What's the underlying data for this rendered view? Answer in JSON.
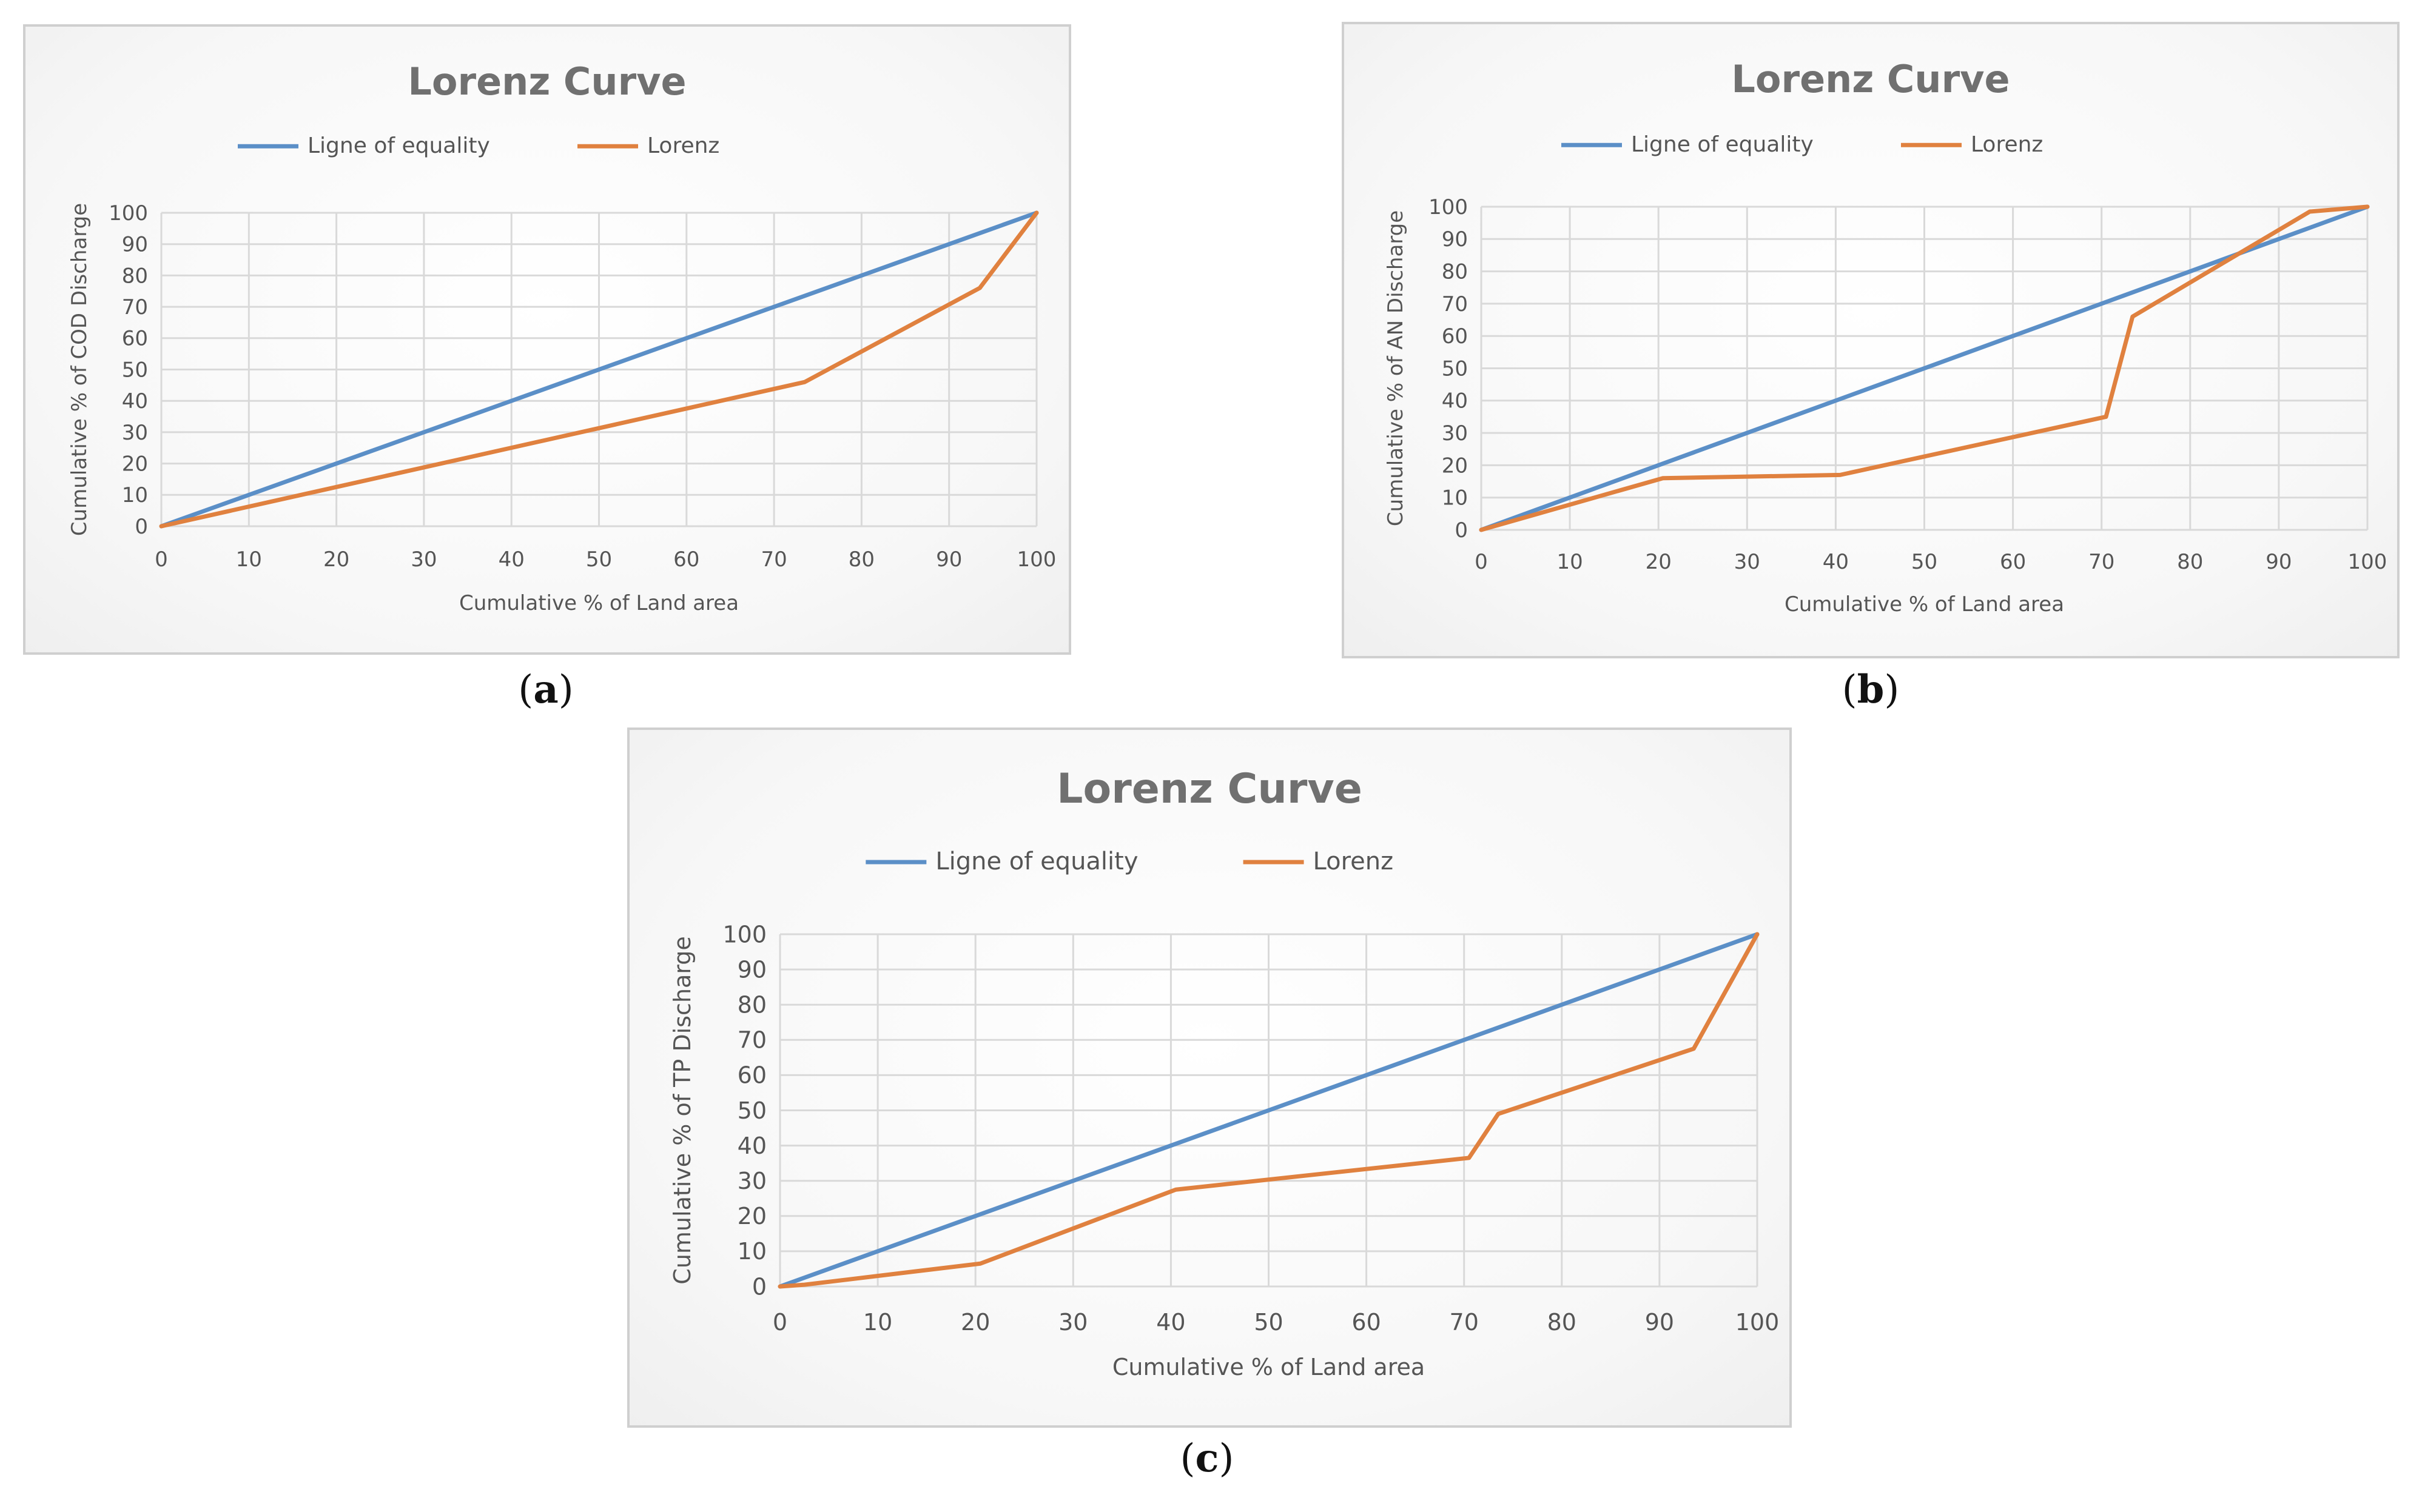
{
  "colors": {
    "equality": "#5b8fc7",
    "lorenz": "#e0813f",
    "grid": "#d9d9d9",
    "title": "#707070",
    "text": "#555555"
  },
  "chart_data": [
    {
      "id": "a",
      "type": "line",
      "title": "Lorenz Curve",
      "xlabel": "Cumulative % of Land area",
      "ylabel": "Cumulative % of COD Discharge",
      "xlim": [
        0,
        100
      ],
      "ylim": [
        0,
        100
      ],
      "xticks": [
        "0",
        "10",
        "20",
        "30",
        "40",
        "50",
        "60",
        "70",
        "80",
        "90",
        "100"
      ],
      "yticks": [
        "0",
        "10",
        "20",
        "30",
        "40",
        "50",
        "60",
        "70",
        "80",
        "90",
        "100"
      ],
      "grid": true,
      "legend_position": "top-center",
      "series": [
        {
          "name": "Ligne of equality",
          "x": [
            0,
            100
          ],
          "y": [
            0,
            100
          ]
        },
        {
          "name": "Lorenz",
          "x": [
            0,
            73.5,
            93.5,
            100
          ],
          "y": [
            0,
            46,
            76,
            100
          ]
        }
      ]
    },
    {
      "id": "b",
      "type": "line",
      "title": "Lorenz Curve",
      "xlabel": "Cumulative % of Land area",
      "ylabel": "Cumulative % of AN Discharge",
      "xlim": [
        0,
        100
      ],
      "ylim": [
        0,
        100
      ],
      "xticks": [
        "0",
        "10",
        "20",
        "30",
        "40",
        "50",
        "60",
        "70",
        "80",
        "90",
        "100"
      ],
      "yticks": [
        "0",
        "10",
        "20",
        "30",
        "40",
        "50",
        "60",
        "70",
        "80",
        "90",
        "100"
      ],
      "grid": true,
      "legend_position": "top-center",
      "series": [
        {
          "name": "Ligne of equality",
          "x": [
            0,
            100
          ],
          "y": [
            0,
            100
          ]
        },
        {
          "name": "Lorenz",
          "x": [
            0,
            20.5,
            40.5,
            70.5,
            73.5,
            93.5,
            100
          ],
          "y": [
            0,
            16,
            17,
            35,
            66,
            98.5,
            100
          ]
        }
      ]
    },
    {
      "id": "c",
      "type": "line",
      "title": "Lorenz Curve",
      "xlabel": "Cumulative % of Land area",
      "ylabel": "Cumulative % of TP Discharge",
      "xlim": [
        0,
        100
      ],
      "ylim": [
        0,
        100
      ],
      "xticks": [
        "0",
        "10",
        "20",
        "30",
        "40",
        "50",
        "60",
        "70",
        "80",
        "90",
        "100"
      ],
      "yticks": [
        "0",
        "10",
        "20",
        "30",
        "40",
        "50",
        "60",
        "70",
        "80",
        "90",
        "100"
      ],
      "grid": true,
      "legend_position": "top-center",
      "series": [
        {
          "name": "Ligne of equality",
          "x": [
            0,
            100
          ],
          "y": [
            0,
            100
          ]
        },
        {
          "name": "Lorenz",
          "x": [
            0,
            2.5,
            20.5,
            40.5,
            70.5,
            73.5,
            93.5,
            100
          ],
          "y": [
            0,
            0.5,
            6.5,
            27.5,
            36.5,
            49,
            67.5,
            100
          ]
        }
      ]
    }
  ],
  "captions": {
    "a": {
      "open": "(",
      "letter": "a",
      "close": ")"
    },
    "b": {
      "open": "(",
      "letter": "b",
      "close": ")"
    },
    "c": {
      "open": "(",
      "letter": "c",
      "close": ")"
    }
  }
}
